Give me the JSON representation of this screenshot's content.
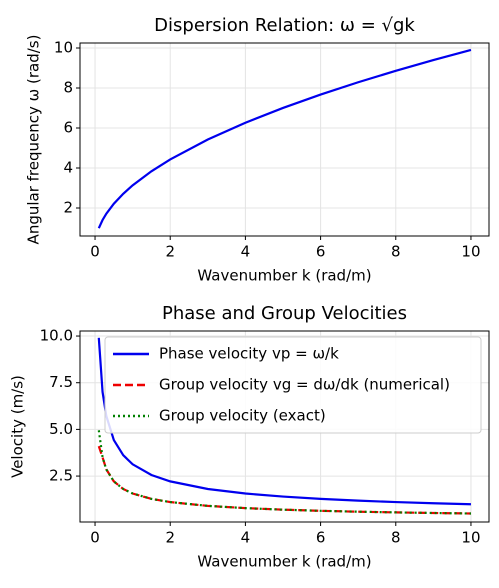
{
  "chart_data": [
    {
      "type": "line",
      "title": "Dispersion Relation: ω = √gk",
      "xlabel": "Wavenumber k (rad/m)",
      "ylabel": "Angular frequency ω (rad/s)",
      "x": [
        0.1,
        0.2,
        0.3,
        0.5,
        0.75,
        1,
        1.5,
        2,
        3,
        4,
        5,
        6,
        7,
        8,
        9,
        10
      ],
      "series": [
        {
          "name": "ω",
          "color": "#0000ee",
          "linestyle": "solid",
          "values": [
            0.99,
            1.401,
            1.716,
            2.215,
            2.712,
            3.132,
            3.836,
            4.429,
            5.425,
            6.264,
            7.004,
            7.672,
            8.287,
            8.859,
            9.396,
            9.905
          ]
        }
      ],
      "xlim": [
        -0.4,
        10.48
      ],
      "ylim": [
        0.6,
        10.25
      ],
      "xticks": [
        0,
        2,
        4,
        6,
        8,
        10
      ],
      "yticks": [
        2,
        4,
        6,
        8,
        10
      ],
      "grid": true,
      "legend": null
    },
    {
      "type": "line",
      "title": "Phase and Group Velocities",
      "xlabel": "Wavenumber k (rad/m)",
      "ylabel": "Velocity (m/s)",
      "x": [
        0.1,
        0.2,
        0.3,
        0.5,
        0.75,
        1,
        1.5,
        2,
        3,
        4,
        5,
        6,
        7,
        8,
        9,
        10
      ],
      "series": [
        {
          "name": "Phase velocity vp = ω/k",
          "color": "#0000ee",
          "linestyle": "solid",
          "values": [
            9.905,
            7.004,
            5.718,
            4.429,
            3.617,
            3.132,
            2.557,
            2.215,
            1.808,
            1.566,
            1.401,
            1.279,
            1.184,
            1.107,
            1.044,
            0.99
          ]
        },
        {
          "name": "Group velocity vg = dω/dk (numerical)",
          "color": "#ee0000",
          "linestyle": "dashed",
          "values": [
            4.1,
            3.502,
            2.859,
            2.215,
            1.808,
            1.566,
            1.279,
            1.107,
            0.904,
            0.783,
            0.7,
            0.639,
            0.592,
            0.554,
            0.522,
            0.495
          ]
        },
        {
          "name": "Group velocity (exact)",
          "color": "#008000",
          "linestyle": "dotted",
          "values": [
            4.952,
            3.502,
            2.859,
            2.215,
            1.808,
            1.566,
            1.279,
            1.107,
            0.904,
            0.783,
            0.7,
            0.639,
            0.592,
            0.554,
            0.522,
            0.495
          ]
        }
      ],
      "xlim": [
        -0.4,
        10.48
      ],
      "ylim": [
        0.04,
        10.27
      ],
      "xticks": [
        0,
        2,
        4,
        6,
        8,
        10
      ],
      "yticks": [
        2.5,
        {
          "value": 5,
          "label": "5.0"
        },
        7.5,
        {
          "value": 10,
          "label": "10.0"
        }
      ],
      "grid": true,
      "legend": "upper right"
    }
  ]
}
